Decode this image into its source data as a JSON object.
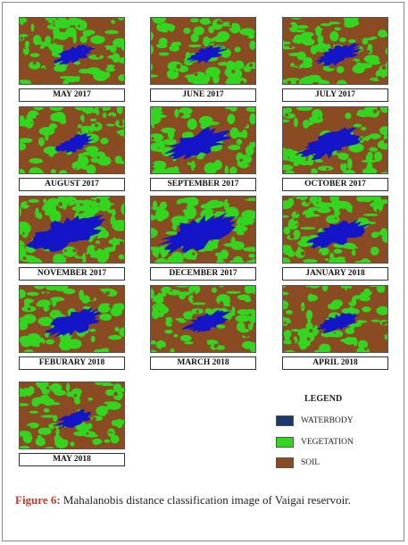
{
  "tiles": [
    {
      "label": "MAY 2017"
    },
    {
      "label": "JUNE 2017"
    },
    {
      "label": "JULY 2017"
    },
    {
      "label": "AUGUST 2017"
    },
    {
      "label": "SEPTEMBER 2017"
    },
    {
      "label": "OCTOBER 2017"
    },
    {
      "label": "NOVEMBER 2017"
    },
    {
      "label": "DECEMBER 2017"
    },
    {
      "label": "JANUARY 2018"
    },
    {
      "label": "FEBURARY 2018"
    },
    {
      "label": "MARCH 2018"
    },
    {
      "label": "APRIL 2018"
    },
    {
      "label": "MAY 2018"
    }
  ],
  "legend": {
    "title": "LEGEND",
    "items": [
      {
        "label": "WATERBODY",
        "color": "#1c3a6b"
      },
      {
        "label": "VEGETATION",
        "color": "#33d61f"
      },
      {
        "label": "SOIL",
        "color": "#8a4a22"
      }
    ]
  },
  "colors": {
    "water": "#1414c8",
    "vegetation": "#33d61f",
    "soil": "#8a4a22"
  },
  "caption": {
    "label": "Figure 6:",
    "text": " Mahalanobis distance classification image of Vaigai reservoir."
  }
}
